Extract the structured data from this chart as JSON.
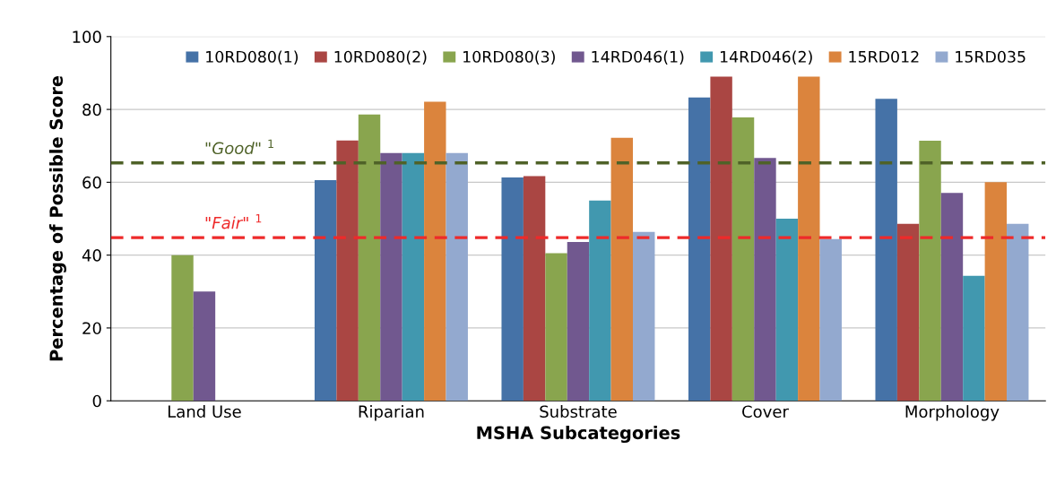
{
  "chart_data": {
    "type": "bar",
    "xlabel": "MSHA Subcategories",
    "ylabel": "Percentage of Possible Score",
    "categories": [
      "Land Use",
      "Riparian",
      "Substrate",
      "Cover",
      "Morphology"
    ],
    "series": [
      {
        "name": "10RD080(1)",
        "color": "#4572a7",
        "values": [
          null,
          60.6,
          61.3,
          83.3,
          82.9
        ]
      },
      {
        "name": "10RD080(2)",
        "color": "#aa4643",
        "values": [
          null,
          71.5,
          61.7,
          89.0,
          48.6
        ]
      },
      {
        "name": "10RD080(3)",
        "color": "#89a54e",
        "values": [
          40.0,
          78.6,
          40.5,
          77.8,
          71.4
        ]
      },
      {
        "name": "14RD046(1)",
        "color": "#71588f",
        "values": [
          30.0,
          68.0,
          43.6,
          66.7,
          57.1
        ]
      },
      {
        "name": "14RD046(2)",
        "color": "#4198af",
        "values": [
          null,
          68.0,
          55.0,
          50.0,
          34.3
        ]
      },
      {
        "name": "15RD012",
        "color": "#db843d",
        "values": [
          null,
          82.1,
          72.2,
          89.0,
          60.0
        ]
      },
      {
        "name": "15RD035",
        "color": "#93a9cf",
        "values": [
          null,
          68.0,
          46.4,
          44.4,
          48.6
        ]
      }
    ],
    "ylim": [
      0,
      100
    ],
    "yticks": [
      0,
      20,
      40,
      60,
      80,
      100
    ],
    "grid": "y",
    "legend": "top",
    "ref_lines": [
      {
        "axis": "y",
        "value": 65.3,
        "label": "\"Good\" $^{1}$",
        "color": "#4f6228",
        "line_style": "dashed"
      },
      {
        "axis": "y",
        "value": 44.8,
        "label": "\"Fair\" $^{1}$",
        "color": "#ee2a2a",
        "line_style": "dashed"
      }
    ]
  }
}
